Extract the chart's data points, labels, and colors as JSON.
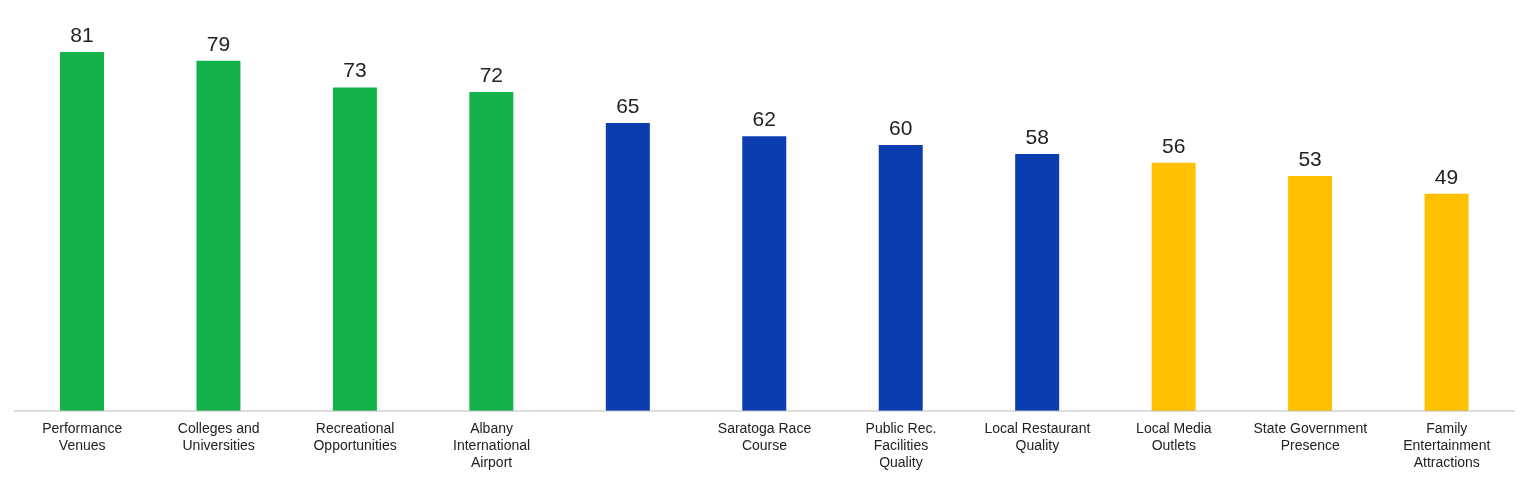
{
  "chart_data": {
    "type": "bar",
    "categories": [
      "Performance Venues",
      "Colleges and Universities",
      "Recreational Opportunities",
      "Albany International Airport",
      null,
      "Saratoga Race Course",
      "Public Rec. Facilities Quality",
      "Local Restaurant Quality",
      "Local Media Outlets",
      "State Government Presence",
      "Family Entertainment Attractions"
    ],
    "values": [
      81,
      79,
      73,
      72,
      65,
      62,
      60,
      58,
      56,
      53,
      49
    ],
    "colors": [
      "#13b24b",
      "#13b24b",
      "#13b24b",
      "#13b24b",
      "#0b3db0",
      "#0b3db0",
      "#0b3db0",
      "#0b3db0",
      "#ffc000",
      "#ffc000",
      "#ffc000"
    ],
    "data_labels": true
  }
}
